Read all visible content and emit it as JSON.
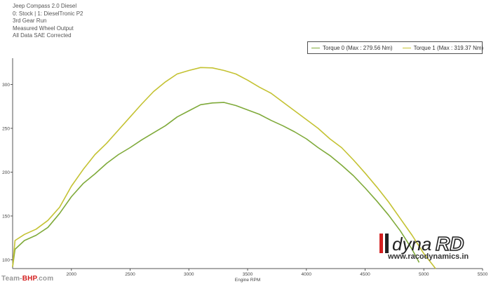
{
  "header": {
    "lines": [
      "Jeep Compass 2.0 Diesel",
      "0: Stock | 1: DieselTronic P2",
      "3rd Gear Run",
      "Measured Wheel Output",
      "All Data SAE Corrected"
    ]
  },
  "legend": {
    "entries": [
      {
        "label": "Torque 0 (Max : 279.56 Nm)",
        "color": "#7faa3a"
      },
      {
        "label": "Torque 1 (Max : 319.37 Nm)",
        "color": "#c4c232"
      }
    ]
  },
  "brand": {
    "logo_text": "dyna",
    "logo_mark": "RD",
    "url": "www.racodynamics.in"
  },
  "watermark": {
    "prefix": "Team-",
    "accent": "BHP",
    "suffix": ".com"
  },
  "colors": {
    "axis": "#555555",
    "logo_red": "#d31f1f",
    "logo_dark": "#222222"
  },
  "chart_data": {
    "type": "line",
    "title": "",
    "xlabel": "Engine RPM",
    "ylabel": "",
    "xlim": [
      1500,
      5500
    ],
    "ylim": [
      90,
      330
    ],
    "x_ticks": [
      2000,
      2500,
      3000,
      3500,
      4000,
      4500,
      5000,
      5500
    ],
    "y_ticks": [
      100,
      150,
      200,
      250,
      300
    ],
    "grid": false,
    "legend_position": "top-right",
    "series": [
      {
        "name": "Torque 0 (Max : 279.56 Nm)",
        "color": "#7faa3a",
        "x": [
          1500,
          1520,
          1600,
          1700,
          1800,
          1900,
          2000,
          2100,
          2200,
          2300,
          2400,
          2500,
          2600,
          2700,
          2800,
          2900,
          3000,
          3100,
          3200,
          3300,
          3400,
          3500,
          3600,
          3700,
          3800,
          3900,
          4000,
          4100,
          4200,
          4300,
          4400,
          4500,
          4600,
          4700,
          4800,
          4900,
          4960
        ],
        "values": [
          92,
          112,
          122,
          128,
          137,
          153,
          172,
          187,
          198,
          210,
          220,
          228,
          237,
          245,
          253,
          263,
          270,
          277,
          279,
          279.5,
          276,
          271,
          266,
          259,
          253,
          246,
          238,
          228,
          219,
          208,
          196,
          182,
          167,
          151,
          133,
          112,
          97
        ]
      },
      {
        "name": "Torque 1 (Max : 319.37 Nm)",
        "color": "#c4c232",
        "x": [
          1500,
          1520,
          1600,
          1700,
          1800,
          1900,
          2000,
          2100,
          2200,
          2300,
          2400,
          2500,
          2600,
          2700,
          2800,
          2900,
          3000,
          3100,
          3200,
          3300,
          3400,
          3500,
          3600,
          3700,
          3800,
          3900,
          4000,
          4100,
          4200,
          4300,
          4400,
          4500,
          4600,
          4700,
          4800,
          4900,
          5000,
          5100
        ],
        "values": [
          92,
          122,
          129,
          135,
          145,
          160,
          184,
          203,
          220,
          233,
          248,
          263,
          278,
          292,
          303,
          312,
          316,
          319.4,
          319,
          316,
          312,
          305,
          297,
          290,
          280,
          270,
          260,
          250,
          238,
          228,
          214,
          199,
          183,
          166,
          147,
          128,
          107,
          90
        ]
      }
    ]
  }
}
